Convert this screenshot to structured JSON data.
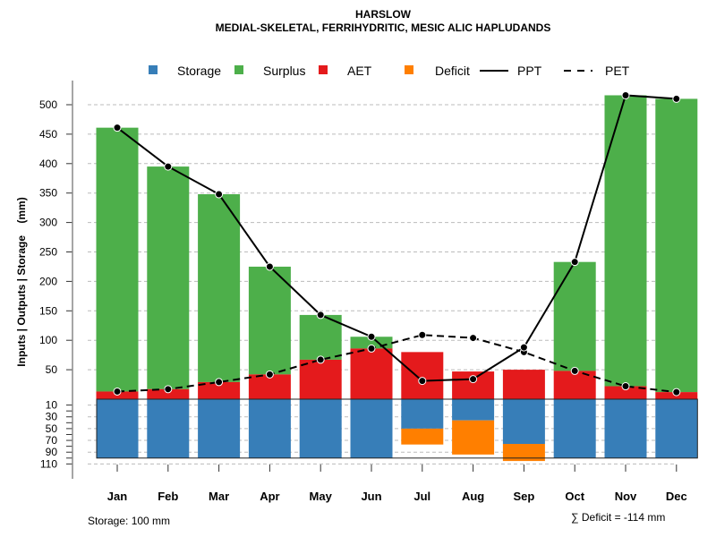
{
  "chart_data": {
    "type": "bar",
    "title": "HARSLOW",
    "subtitle": "MEDIAL-SKELETAL, FERRIHYDRITIC, MESIC ALIC HAPLUDANDS",
    "ylabel": "Inputs | Outputs | Storage    (mm)",
    "ylim": [
      0,
      530
    ],
    "storage_ylim": [
      0,
      110
    ],
    "yticks": [
      50,
      100,
      150,
      200,
      250,
      300,
      350,
      400,
      450,
      500
    ],
    "storage_ticks": [
      10,
      30,
      50,
      70,
      90,
      110
    ],
    "storage_tick_labels": [
      "10",
      "30",
      "50",
      "70",
      "90",
      "110"
    ],
    "categories": [
      "Jan",
      "Feb",
      "Mar",
      "Apr",
      "May",
      "Jun",
      "Jul",
      "Aug",
      "Sep",
      "Oct",
      "Nov",
      "Dec"
    ],
    "series": [
      {
        "name": "PPT",
        "values": [
          461,
          395,
          348,
          225,
          143,
          106,
          31,
          34,
          88,
          233,
          516,
          510
        ]
      },
      {
        "name": "PET",
        "values": [
          13,
          17,
          29,
          42,
          67,
          86,
          109,
          104,
          80,
          48,
          22,
          12
        ]
      },
      {
        "name": "AET",
        "values": [
          13,
          17,
          29,
          42,
          67,
          86,
          80,
          47,
          50,
          48,
          22,
          12
        ]
      },
      {
        "name": "Surplus",
        "values": [
          448,
          378,
          319,
          183,
          76,
          20,
          0,
          0,
          0,
          185,
          494,
          498
        ]
      },
      {
        "name": "Storage",
        "values": [
          100,
          100,
          100,
          100,
          100,
          100,
          50,
          36,
          76,
          100,
          100,
          100
        ]
      },
      {
        "name": "Deficit",
        "values": [
          0,
          0,
          0,
          0,
          0,
          0,
          27,
          58,
          29,
          0,
          0,
          0
        ]
      }
    ],
    "legend": {
      "placement": "top",
      "items": [
        {
          "label": "Storage",
          "type": "box",
          "color": "#377EB8"
        },
        {
          "label": "Surplus",
          "type": "box",
          "color": "#4DAF4A"
        },
        {
          "label": "AET",
          "type": "box",
          "color": "#E41A1C"
        },
        {
          "label": "Deficit",
          "type": "box",
          "color": "#FF7F00"
        },
        {
          "label": "PPT",
          "type": "solid"
        },
        {
          "label": "PET",
          "type": "dashed"
        }
      ]
    },
    "annotations": {
      "storage_note": "Storage: 100 mm",
      "deficit_note": "∑ Deficit = -114 mm"
    },
    "colors": {
      "storage": "#377EB8",
      "surplus": "#4DAF4A",
      "aet": "#E41A1C",
      "deficit": "#FF7F00"
    }
  }
}
